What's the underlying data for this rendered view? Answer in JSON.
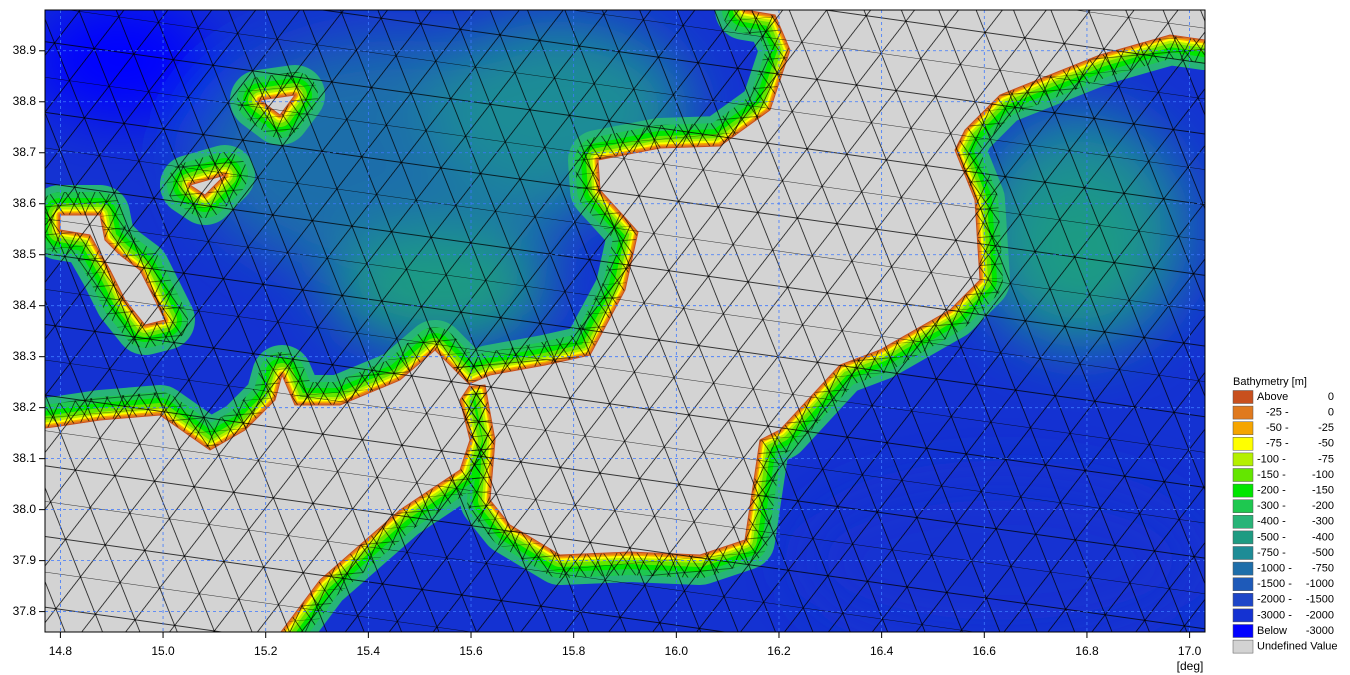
{
  "map": {
    "xlim": [
      14.77,
      17.03
    ],
    "ylim": [
      37.76,
      38.98
    ],
    "xticks": [
      14.8,
      {
        "value": 15.0,
        "label": "15.0"
      },
      15.2,
      15.4,
      15.6,
      15.8,
      {
        "value": 16.0,
        "label": "16.0"
      },
      16.2,
      16.4,
      16.6,
      16.8,
      {
        "value": 17.0,
        "label": "17.0"
      }
    ],
    "yticks": [
      37.8,
      37.9,
      {
        "value": 38.0,
        "label": "38.0"
      },
      38.1,
      38.2,
      38.3,
      38.4,
      38.5,
      38.6,
      38.7,
      38.8,
      38.9
    ],
    "x_unit": "[deg]",
    "grid": true
  },
  "legend": {
    "title": "Bathymetry [m]",
    "entries": [
      {
        "from": "Above",
        "to": "0",
        "color": "#c8501e"
      },
      {
        "from": "-25 -",
        "to": "0",
        "color": "#e07a1e"
      },
      {
        "from": "-50 -",
        "to": "-25",
        "color": "#f5a500"
      },
      {
        "from": "-75 -",
        "to": "-50",
        "color": "#ffff00"
      },
      {
        "from": "-100 -",
        "to": "-75",
        "color": "#b4f000"
      },
      {
        "from": "-150 -",
        "to": "-100",
        "color": "#64e600"
      },
      {
        "from": "-200 -",
        "to": "-150",
        "color": "#00e600"
      },
      {
        "from": "-300 -",
        "to": "-200",
        "color": "#1ec850"
      },
      {
        "from": "-400 -",
        "to": "-300",
        "color": "#28b478"
      },
      {
        "from": "-500 -",
        "to": "-400",
        "color": "#1e9b82"
      },
      {
        "from": "-750 -",
        "to": "-500",
        "color": "#1e8c96"
      },
      {
        "from": "-1000 -",
        "to": "-750",
        "color": "#1e6eaa"
      },
      {
        "from": "-1500 -",
        "to": "-1000",
        "color": "#1e5ab9"
      },
      {
        "from": "-2000 -",
        "to": "-1500",
        "color": "#1e46c8"
      },
      {
        "from": "-3000 -",
        "to": "-2000",
        "color": "#1432d2"
      },
      {
        "from": "Below",
        "to": "-3000",
        "color": "#0000ff"
      },
      {
        "label": "Undefined Value",
        "color": "#d3d3d3"
      }
    ]
  }
}
